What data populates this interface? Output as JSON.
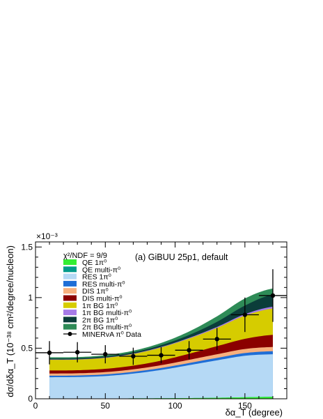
{
  "chart_data": {
    "type": "area",
    "title": "(a) GiBUU 25p1, default",
    "annotation": "χ²/NDF = 9/9",
    "xlabel": "δα_T (degree)",
    "ylabel": "dσ/dδα_T (10⁻³⁸ cm²/degree/nucleon)",
    "y_multiplier": "×10⁻³",
    "xlim": [
      0,
      180
    ],
    "ylim": [
      0,
      0.00155
    ],
    "x_ticks": [
      0,
      50,
      100,
      150
    ],
    "y_ticks": [
      0,
      0.0005,
      0.001,
      0.0015
    ],
    "y_tick_labels": [
      "0",
      "0.5",
      "1",
      "1.5"
    ],
    "legend_position": "top-left",
    "x": [
      10,
      30,
      50,
      70,
      90,
      110,
      130,
      150,
      170
    ],
    "stack_series": [
      {
        "name": "QE 1π⁰",
        "color": "#33ee33",
        "values": [
          3e-06,
          3e-06,
          3e-06,
          4e-06,
          5e-06,
          7e-06,
          1e-05,
          1.5e-05,
          2e-05
        ]
      },
      {
        "name": "QE multi-π⁰",
        "color": "#009a8a",
        "values": [
          0,
          0,
          0,
          0,
          0,
          0,
          0,
          0,
          0
        ]
      },
      {
        "name": "RES 1π⁰",
        "color": "#b5d9f5",
        "values": [
          0.00021,
          0.000212,
          0.000222,
          0.000245,
          0.00028,
          0.000325,
          0.00037,
          0.00041,
          0.00042
        ]
      },
      {
        "name": "RES multi-π⁰",
        "color": "#1f6ed6",
        "values": [
          1.5e-05,
          1.5e-05,
          1.6e-05,
          1.7e-05,
          1.9e-05,
          2.1e-05,
          2.4e-05,
          2.7e-05,
          3e-05
        ]
      },
      {
        "name": "DIS 1π⁰",
        "color": "#f7b07e",
        "values": [
          2.2e-05,
          2.2e-05,
          2.3e-05,
          2.5e-05,
          2.8e-05,
          3.2e-05,
          3.6e-05,
          4e-05,
          4.2e-05
        ]
      },
      {
        "name": "DIS multi-π⁰",
        "color": "#8b0000",
        "values": [
          3e-05,
          3e-05,
          3.2e-05,
          3.6e-05,
          4.5e-05,
          6e-05,
          8e-05,
          0.0001,
          0.00012
        ]
      },
      {
        "name": "1π BG 1π⁰",
        "color": "#d6cc00",
        "values": [
          0.000105,
          0.000105,
          0.000108,
          0.000115,
          0.00013,
          0.00015,
          0.00018,
          0.00023,
          0.00026
        ]
      },
      {
        "name": "1π BG multi-π⁰",
        "color": "#a67be8",
        "values": [
          3e-06,
          3e-06,
          3e-06,
          4e-06,
          5e-06,
          7e-06,
          1e-05,
          1.4e-05,
          1.8e-05
        ]
      },
      {
        "name": "2π BG 1π⁰",
        "color": "#0b3d3a",
        "values": [
          1e-05,
          1e-05,
          1.1e-05,
          1.3e-05,
          1.8e-05,
          2.8e-05,
          5e-05,
          8.5e-05,
          0.00012
        ]
      },
      {
        "name": "2π BG multi-π⁰",
        "color": "#2e8b57",
        "values": [
          1.2e-05,
          1.2e-05,
          1.3e-05,
          1.6e-05,
          2.2e-05,
          3.5e-05,
          5.5e-05,
          7e-05,
          6e-05
        ]
      }
    ],
    "data_series": {
      "name": "MINERvA π⁰ Data",
      "color": "#000000",
      "x": [
        10,
        30,
        50,
        70,
        90,
        110,
        130,
        150,
        170
      ],
      "x_err": [
        10,
        10,
        10,
        10,
        10,
        10,
        10,
        10,
        10
      ],
      "y": [
        0.000455,
        0.00046,
        0.00044,
        0.00042,
        0.00043,
        0.00048,
        0.00059,
        0.00083,
        0.00102
      ],
      "y_err": [
        0.000115,
        0.0001,
        9e-05,
        8.5e-05,
        8e-05,
        9e-05,
        0.00011,
        0.00017,
        0.00026
      ]
    }
  }
}
